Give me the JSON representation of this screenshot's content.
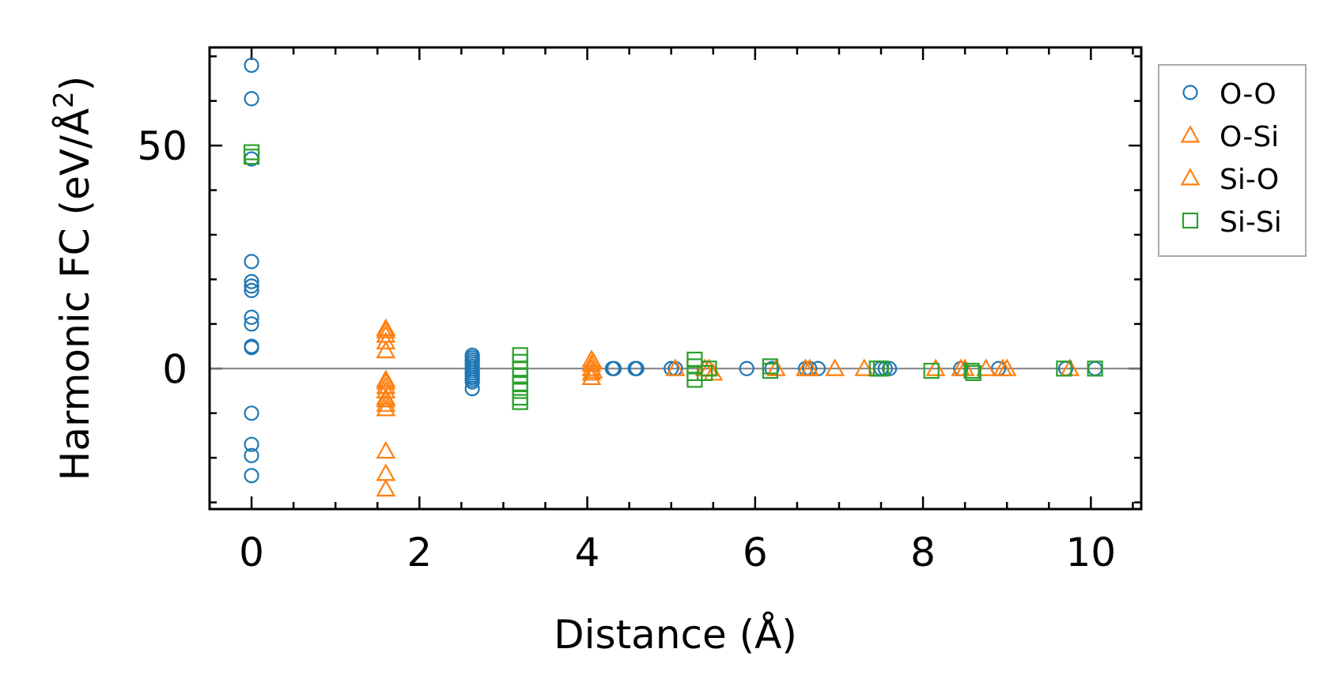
{
  "chart_data": {
    "type": "scatter",
    "xlabel": "Distance (Å)",
    "ylabel_main": "Harmonic FC (eV/Å",
    "ylabel_sup": "2",
    "ylabel_close": ")",
    "xlim": [
      -0.5,
      10.6
    ],
    "ylim": [
      -31.5,
      72
    ],
    "xticks": [
      0,
      2,
      4,
      6,
      8,
      10
    ],
    "xtick_labels": [
      "0",
      "2",
      "4",
      "6",
      "8",
      "10"
    ],
    "yticks": [
      0,
      50
    ],
    "ytick_labels": [
      "0",
      "50"
    ],
    "x_minor_step": 0.5,
    "y_minor_step": 10,
    "zero_line": true,
    "legend_position": "outside-right-top",
    "series": [
      {
        "name": "O-O",
        "marker": "circle",
        "color": "#1f77b4",
        "points": [
          [
            0,
            68
          ],
          [
            0,
            60.5
          ],
          [
            0,
            47
          ],
          [
            0,
            24
          ],
          [
            0,
            19.5
          ],
          [
            0,
            18.5
          ],
          [
            0,
            17.5
          ],
          [
            0,
            11.5
          ],
          [
            0,
            10
          ],
          [
            0,
            5
          ],
          [
            0,
            4.7
          ],
          [
            0,
            -10
          ],
          [
            0,
            -17
          ],
          [
            0,
            -19.5
          ],
          [
            0,
            -24
          ],
          [
            2.63,
            3
          ],
          [
            2.63,
            2.5
          ],
          [
            2.63,
            2
          ],
          [
            2.63,
            1.5
          ],
          [
            2.63,
            1
          ],
          [
            2.63,
            0.5
          ],
          [
            2.63,
            0
          ],
          [
            2.63,
            -0.5
          ],
          [
            2.63,
            -1
          ],
          [
            2.63,
            -1.5
          ],
          [
            2.63,
            -2
          ],
          [
            2.63,
            -2.5
          ],
          [
            2.63,
            -3
          ],
          [
            2.63,
            -4.5
          ],
          [
            4.3,
            0
          ],
          [
            4.32,
            0
          ],
          [
            4.57,
            0
          ],
          [
            4.59,
            0
          ],
          [
            5.0,
            0
          ],
          [
            5.05,
            0
          ],
          [
            5.9,
            0
          ],
          [
            6.2,
            0
          ],
          [
            6.6,
            0
          ],
          [
            6.65,
            0
          ],
          [
            6.75,
            0
          ],
          [
            7.5,
            0
          ],
          [
            7.55,
            0
          ],
          [
            7.6,
            0
          ],
          [
            8.45,
            0
          ],
          [
            8.9,
            0
          ],
          [
            9.7,
            0
          ],
          [
            10.05,
            0
          ]
        ]
      },
      {
        "name": "O-Si",
        "marker": "triangle",
        "color": "#ff7f0e",
        "points": [
          [
            1.6,
            8.5
          ],
          [
            1.6,
            7.5
          ],
          [
            1.6,
            6
          ],
          [
            1.6,
            4
          ],
          [
            1.6,
            -2.5
          ],
          [
            1.6,
            -4
          ],
          [
            1.6,
            -5
          ],
          [
            1.6,
            -6.5
          ],
          [
            1.6,
            -8
          ],
          [
            1.6,
            -9
          ],
          [
            1.6,
            -18.5
          ],
          [
            1.6,
            -23.5
          ],
          [
            1.6,
            -27
          ],
          [
            4.05,
            2
          ],
          [
            4.05,
            1
          ],
          [
            4.05,
            0
          ],
          [
            4.05,
            -1
          ],
          [
            4.05,
            -2
          ],
          [
            5.05,
            0
          ],
          [
            5.4,
            0
          ],
          [
            5.5,
            -1
          ],
          [
            6.25,
            0
          ],
          [
            6.6,
            0
          ],
          [
            6.95,
            0
          ],
          [
            7.3,
            0
          ],
          [
            8.15,
            0
          ],
          [
            8.45,
            0
          ],
          [
            8.75,
            0
          ],
          [
            8.95,
            0
          ],
          [
            9.75,
            0
          ]
        ]
      },
      {
        "name": "Si-O",
        "marker": "triangle",
        "color": "#ff7f0e",
        "points": [
          [
            1.6,
            9
          ],
          [
            1.6,
            -3
          ],
          [
            1.6,
            -7
          ],
          [
            4.07,
            1.5
          ],
          [
            4.07,
            -0.5
          ],
          [
            5.45,
            0
          ],
          [
            6.65,
            0
          ],
          [
            8.5,
            0
          ],
          [
            9.0,
            0
          ]
        ]
      },
      {
        "name": "Si-Si",
        "marker": "square",
        "color": "#2ca02c",
        "points": [
          [
            0,
            48.5
          ],
          [
            0,
            47.5
          ],
          [
            3.2,
            3
          ],
          [
            3.2,
            1.5
          ],
          [
            3.2,
            0
          ],
          [
            3.2,
            -1.5
          ],
          [
            3.2,
            -3.5
          ],
          [
            3.2,
            -5
          ],
          [
            3.2,
            -6.5
          ],
          [
            3.2,
            -7.5
          ],
          [
            5.28,
            2
          ],
          [
            5.28,
            0.5
          ],
          [
            5.28,
            -1
          ],
          [
            5.28,
            -2.5
          ],
          [
            5.45,
            0
          ],
          [
            5.4,
            -1
          ],
          [
            6.18,
            0.5
          ],
          [
            6.18,
            -0.5
          ],
          [
            7.45,
            0
          ],
          [
            7.5,
            0
          ],
          [
            8.1,
            -0.5
          ],
          [
            8.58,
            -0.5
          ],
          [
            8.6,
            -1
          ],
          [
            9.68,
            0
          ],
          [
            10.05,
            0
          ]
        ]
      }
    ]
  }
}
